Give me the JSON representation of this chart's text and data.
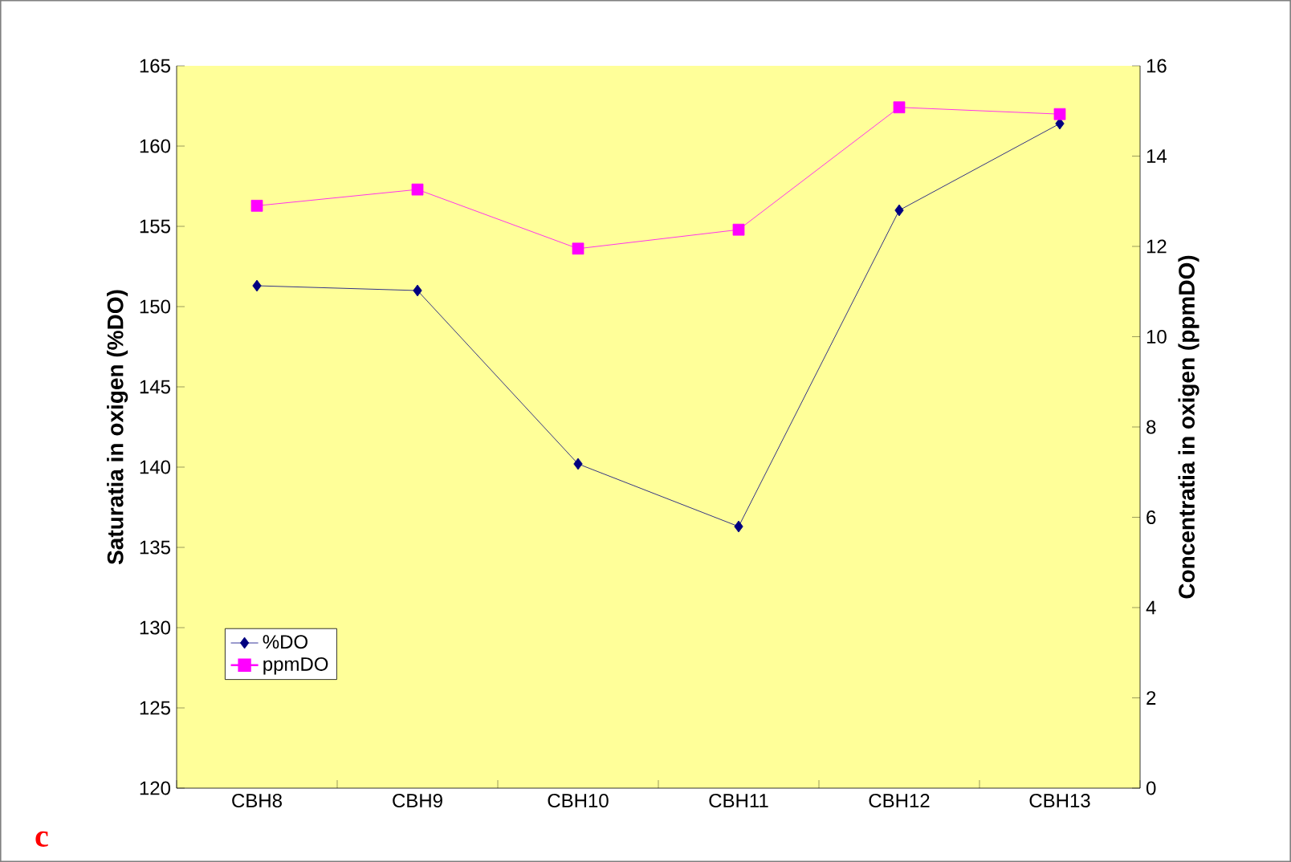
{
  "chart_data": {
    "type": "line",
    "categories": [
      "CBH8",
      "CBH9",
      "CBH10",
      "CBH11",
      "CBH12",
      "CBH13"
    ],
    "ylabel": "Saturatia in oxigen (%DO)",
    "y2label": "Concentratia in oxigen (ppmDO)",
    "ylim": [
      120,
      165
    ],
    "yticks": [
      120,
      125,
      130,
      135,
      140,
      145,
      150,
      155,
      160,
      165
    ],
    "y2lim": [
      0,
      16
    ],
    "y2ticks": [
      0,
      2,
      4,
      6,
      8,
      10,
      12,
      14,
      16
    ],
    "series": [
      {
        "name": "%DO",
        "color": "#000080",
        "marker": "diamond",
        "values": [
          151.3,
          151.0,
          140.2,
          136.3,
          156.0,
          161.4
        ]
      },
      {
        "name": "ppmDO",
        "color": "#ff00ff",
        "marker": "square",
        "axis": "y2",
        "values": [
          12.9,
          13.26,
          11.95,
          12.37,
          15.08,
          14.93
        ]
      }
    ],
    "line_style": "solid",
    "grid": false,
    "legend": "bottom left",
    "annotations": [
      "c"
    ]
  }
}
